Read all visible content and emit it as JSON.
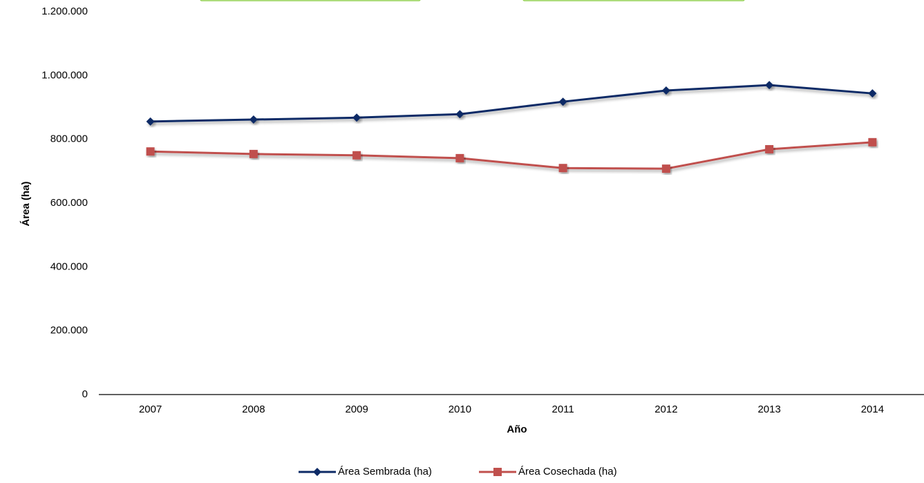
{
  "chart_data": {
    "type": "line",
    "x_label": "Año",
    "y_label": "Área (ha)",
    "categories": [
      "2007",
      "2008",
      "2009",
      "2010",
      "2011",
      "2012",
      "2013",
      "2014"
    ],
    "series": [
      {
        "name": "Área Sembrada (ha)",
        "color": "#0d2a66",
        "marker": "diamond",
        "values": [
          856000,
          862000,
          868000,
          879000,
          918000,
          953000,
          970000,
          944000
        ]
      },
      {
        "name": "Área Cosechada (ha)",
        "color": "#c0504d",
        "marker": "square",
        "values": [
          762000,
          754000,
          750000,
          741000,
          710000,
          708000,
          769000,
          791000
        ]
      }
    ],
    "ylim": [
      0,
      1200000
    ],
    "yticks": [
      0,
      {
        "value": 200000,
        "label": "200.000"
      },
      {
        "value": 400000,
        "label": "400.000"
      },
      {
        "value": 600000,
        "label": "600.000"
      },
      {
        "value": 800000,
        "label": "800.000"
      },
      {
        "value": 1000000,
        "label": "1.000.000"
      },
      {
        "value": 1200000,
        "label": "1.200.000"
      }
    ],
    "grid": false,
    "legend": "bottom"
  }
}
